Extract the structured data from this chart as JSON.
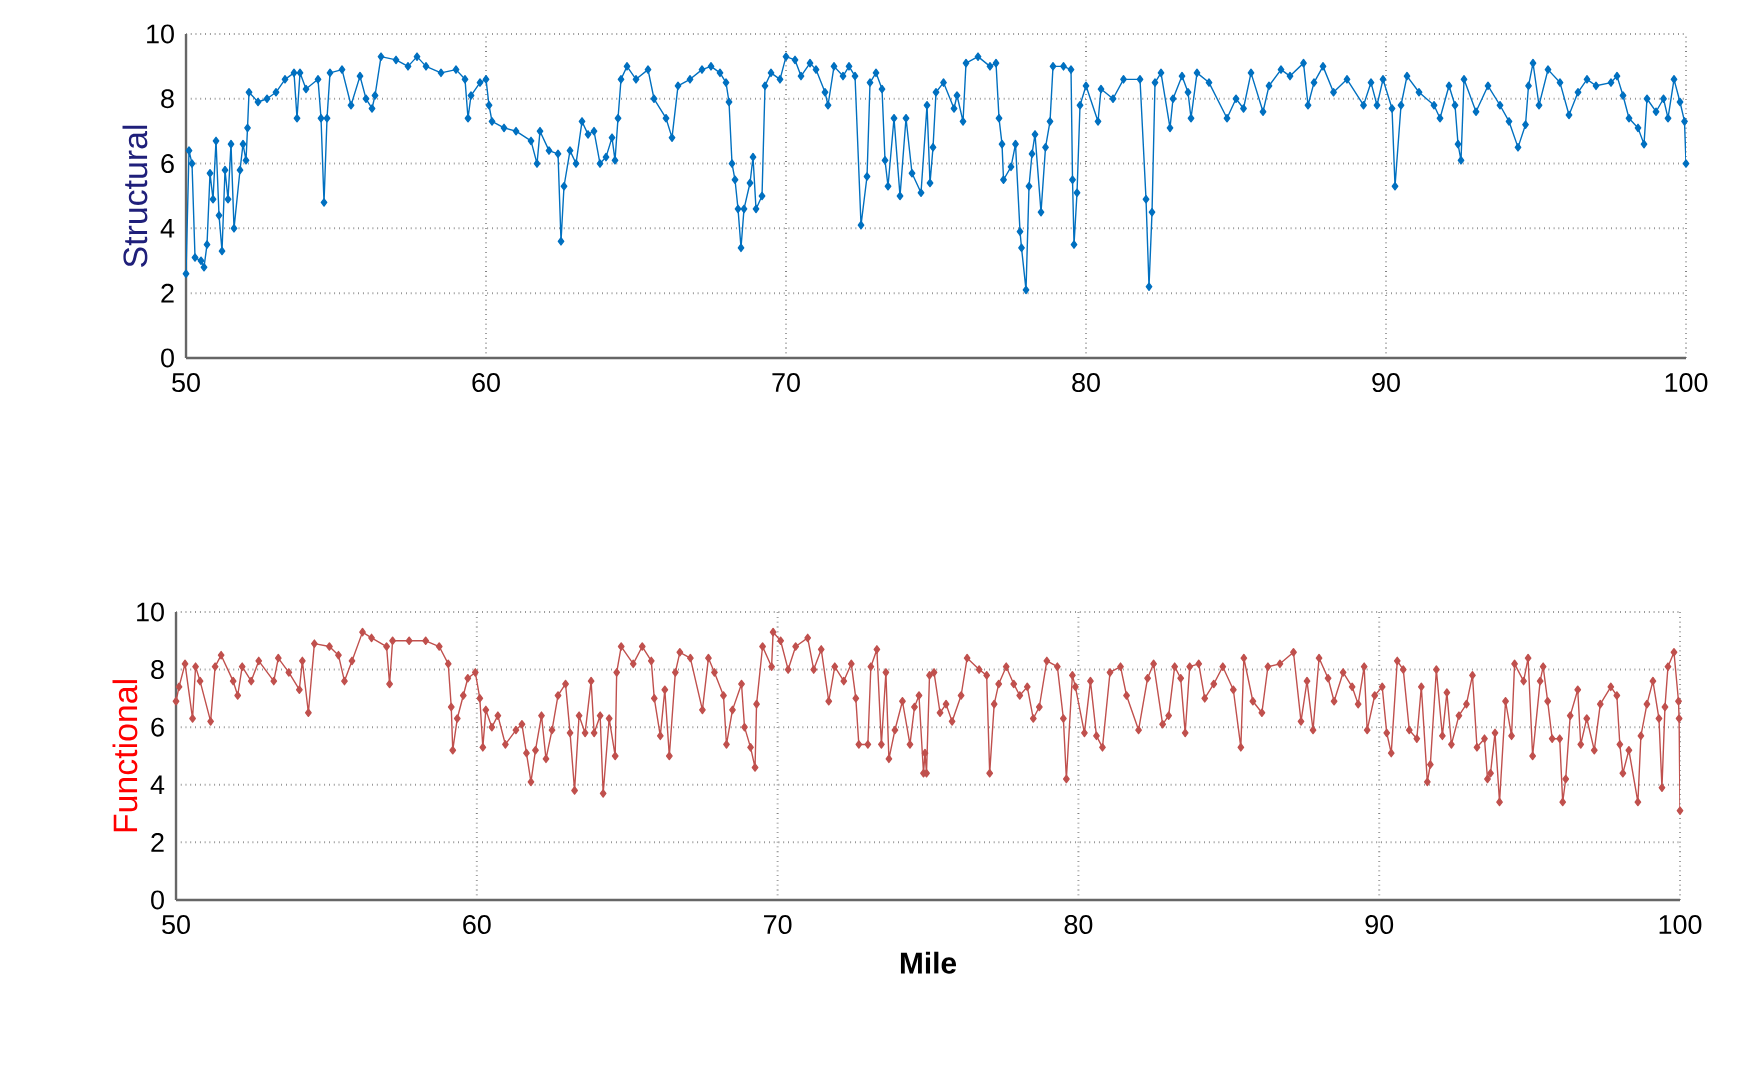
{
  "chart_data": [
    {
      "type": "line",
      "ylabel": "Structural",
      "xlim": [
        50,
        100
      ],
      "ylim": [
        0,
        10
      ],
      "xticks": [
        50,
        60,
        70,
        80,
        90,
        100
      ],
      "yticks": [
        0,
        2,
        4,
        6,
        8,
        10
      ],
      "grid": true,
      "marker": "diamond",
      "series": [
        {
          "color": "#0070c0",
          "x": [
            50.0,
            50.1,
            50.2,
            50.3,
            50.5,
            50.6,
            50.7,
            50.8,
            50.9,
            51.0,
            51.1,
            51.2,
            51.3,
            51.4,
            51.5,
            51.6,
            51.8,
            51.9,
            52.0,
            52.05,
            52.1,
            52.4,
            52.7,
            53.0,
            53.3,
            53.6,
            53.7,
            53.8,
            54.0,
            54.4,
            54.5,
            54.6,
            54.7,
            54.8,
            55.2,
            55.5,
            55.8,
            56.0,
            56.2,
            56.3,
            56.5,
            57.0,
            57.4,
            57.7,
            58.0,
            58.5,
            59.0,
            59.3,
            59.4,
            59.5,
            59.8,
            60.0,
            60.1,
            60.2,
            60.6,
            61.0,
            61.5,
            61.7,
            61.8,
            62.1,
            62.4,
            62.5,
            62.6,
            62.8,
            63.0,
            63.2,
            63.4,
            63.6,
            63.8,
            64.0,
            64.2,
            64.3,
            64.4,
            64.5,
            64.7,
            65.0,
            65.4,
            65.6,
            66.0,
            66.2,
            66.4,
            66.8,
            67.2,
            67.5,
            67.8,
            68.0,
            68.1,
            68.2,
            68.3,
            68.4,
            68.5,
            68.6,
            68.8,
            68.9,
            69.0,
            69.2,
            69.3,
            69.5,
            69.8,
            70.0,
            70.3,
            70.5,
            70.8,
            71.0,
            71.3,
            71.4,
            71.6,
            71.9,
            72.1,
            72.3,
            72.5,
            72.7,
            72.8,
            73.0,
            73.2,
            73.3,
            73.4,
            73.6,
            73.8,
            74.0,
            74.2,
            74.5,
            74.7,
            74.8,
            74.9,
            75.0,
            75.25,
            75.6,
            75.7,
            75.9,
            76.0,
            76.4,
            76.8,
            77.0,
            77.1,
            77.2,
            77.25,
            77.5,
            77.65,
            77.8,
            77.85,
            78.0,
            78.1,
            78.2,
            78.3,
            78.5,
            78.65,
            78.8,
            78.9,
            79.25,
            79.5,
            79.55,
            79.6,
            79.7,
            79.8,
            80.0,
            80.4,
            80.5,
            80.9,
            81.25,
            81.8,
            82.0,
            82.1,
            82.2,
            82.3,
            82.5,
            82.8,
            82.9,
            83.2,
            83.4,
            83.5,
            83.7,
            84.1,
            84.7,
            85.0,
            85.25,
            85.5,
            85.9,
            86.1,
            86.5,
            86.8,
            87.25,
            87.4,
            87.6,
            87.9,
            88.25,
            88.7,
            89.25,
            89.5,
            89.7,
            89.9,
            90.2,
            90.3,
            90.5,
            90.7,
            91.1,
            91.6,
            91.8,
            92.1,
            92.3,
            92.4,
            92.5,
            92.6,
            93.0,
            93.4,
            93.8,
            94.1,
            94.4,
            94.65,
            94.75,
            94.9,
            95.1,
            95.4,
            95.8,
            96.1,
            96.4,
            96.7,
            97.0,
            97.5,
            97.7,
            97.9,
            98.1,
            98.4,
            98.6,
            98.7,
            99.0,
            99.25,
            99.4,
            99.6,
            99.8,
            99.95,
            100.0
          ],
          "values": [
            2.6,
            6.4,
            6.0,
            3.1,
            3.0,
            2.8,
            3.5,
            5.7,
            4.9,
            6.7,
            4.4,
            3.3,
            5.8,
            4.9,
            6.6,
            4.0,
            5.8,
            6.6,
            6.1,
            7.1,
            8.2,
            7.9,
            8.0,
            8.2,
            8.6,
            8.8,
            7.4,
            8.8,
            8.3,
            8.6,
            7.4,
            4.8,
            7.4,
            8.8,
            8.9,
            7.8,
            8.7,
            8.0,
            7.7,
            8.1,
            9.3,
            9.2,
            9.0,
            9.3,
            9.0,
            8.8,
            8.9,
            8.6,
            7.4,
            8.1,
            8.5,
            8.6,
            7.8,
            7.3,
            7.1,
            7.0,
            6.7,
            6.0,
            7.0,
            6.4,
            6.3,
            3.6,
            5.3,
            6.4,
            6.0,
            7.3,
            6.9,
            7.0,
            6.0,
            6.2,
            6.8,
            6.1,
            7.4,
            8.6,
            9.0,
            8.6,
            8.9,
            8.0,
            7.4,
            6.8,
            8.4,
            8.6,
            8.9,
            9.0,
            8.8,
            8.5,
            7.9,
            6.0,
            5.5,
            4.6,
            3.4,
            4.6,
            5.4,
            6.2,
            4.6,
            5.0,
            8.4,
            8.8,
            8.6,
            9.3,
            9.2,
            8.7,
            9.1,
            8.9,
            8.2,
            7.8,
            9.0,
            8.7,
            9.0,
            8.7,
            4.1,
            5.6,
            8.5,
            8.8,
            8.3,
            6.1,
            5.3,
            7.4,
            5.0,
            7.4,
            5.7,
            5.1,
            7.8,
            5.4,
            6.5,
            8.2,
            8.5,
            7.7,
            8.1,
            7.3,
            9.1,
            9.3,
            9.0,
            9.1,
            7.4,
            6.6,
            5.5,
            5.9,
            6.6,
            3.9,
            3.4,
            2.1,
            5.3,
            6.3,
            6.9,
            4.5,
            6.5,
            7.3,
            9.0,
            9.0,
            8.9,
            5.5,
            3.5,
            5.1,
            7.8,
            8.4,
            7.3,
            8.3,
            8.0,
            8.6,
            8.6,
            4.9,
            2.2,
            4.5,
            8.5,
            8.8,
            7.1,
            8.0,
            8.7,
            8.2,
            7.4,
            8.8,
            8.5,
            7.4,
            8.0,
            7.7,
            8.8,
            7.6,
            8.4,
            8.9,
            8.7,
            9.1,
            7.8,
            8.5,
            9.0,
            8.2,
            8.6,
            7.8,
            8.5,
            7.8,
            8.6,
            7.7,
            5.3,
            7.8,
            8.7,
            8.2,
            7.8,
            7.4,
            8.4,
            7.8,
            6.6,
            6.1,
            8.6,
            7.6,
            8.4,
            7.8,
            7.3,
            6.5,
            7.2,
            8.4,
            9.1,
            7.8,
            8.9,
            8.5,
            7.5,
            8.2,
            8.6,
            8.4,
            8.5,
            8.7,
            8.1,
            7.4,
            7.1,
            6.6,
            8.0,
            7.6,
            8.0,
            7.4,
            8.6,
            7.9,
            7.3,
            6.0
          ]
        }
      ]
    },
    {
      "type": "line",
      "ylabel": "Functional",
      "xlabel": "Mile",
      "xlim": [
        50,
        100
      ],
      "ylim": [
        0,
        10
      ],
      "xticks": [
        50,
        60,
        70,
        80,
        90,
        100
      ],
      "yticks": [
        0,
        2,
        4,
        6,
        8,
        10
      ],
      "grid": true,
      "marker": "diamond",
      "series": [
        {
          "color": "#c0504d",
          "x": [
            50.0,
            50.1,
            50.3,
            50.55,
            50.65,
            50.8,
            51.15,
            51.3,
            51.5,
            51.9,
            52.05,
            52.2,
            52.5,
            52.75,
            53.25,
            53.4,
            53.75,
            54.1,
            54.2,
            54.4,
            54.6,
            55.1,
            55.4,
            55.6,
            55.85,
            56.2,
            56.5,
            57.0,
            57.1,
            57.2,
            57.75,
            58.3,
            58.75,
            59.05,
            59.15,
            59.2,
            59.35,
            59.55,
            59.7,
            59.95,
            60.1,
            60.2,
            60.3,
            60.5,
            60.7,
            60.95,
            61.3,
            61.5,
            61.65,
            61.8,
            61.95,
            62.15,
            62.3,
            62.5,
            62.7,
            62.95,
            63.1,
            63.25,
            63.4,
            63.6,
            63.8,
            63.9,
            64.1,
            64.2,
            64.4,
            64.6,
            64.65,
            64.8,
            65.2,
            65.5,
            65.8,
            65.9,
            66.1,
            66.25,
            66.4,
            66.6,
            66.75,
            67.1,
            67.5,
            67.7,
            67.9,
            68.2,
            68.3,
            68.5,
            68.8,
            68.9,
            69.1,
            69.25,
            69.3,
            69.5,
            69.8,
            69.85,
            70.1,
            70.35,
            70.6,
            71.0,
            71.2,
            71.45,
            71.7,
            71.9,
            72.2,
            72.45,
            72.6,
            72.7,
            73.0,
            73.1,
            73.3,
            73.45,
            73.6,
            73.7,
            73.9,
            74.15,
            74.4,
            74.55,
            74.7,
            74.85,
            74.9,
            74.95,
            75.05,
            75.2,
            75.4,
            75.6,
            75.8,
            76.1,
            76.3,
            76.7,
            76.95,
            77.05,
            77.2,
            77.35,
            77.6,
            77.85,
            78.05,
            78.3,
            78.5,
            78.7,
            78.95,
            79.3,
            79.5,
            79.6,
            79.8,
            79.9,
            80.2,
            80.4,
            80.6,
            80.8,
            81.05,
            81.4,
            81.6,
            82.0,
            82.3,
            82.5,
            82.8,
            83.0,
            83.2,
            83.4,
            83.55,
            83.7,
            84.0,
            84.2,
            84.5,
            84.8,
            85.15,
            85.4,
            85.5,
            85.8,
            86.1,
            86.3,
            86.7,
            87.15,
            87.4,
            87.6,
            87.8,
            88.0,
            88.3,
            88.5,
            88.8,
            89.1,
            89.3,
            89.5,
            89.6,
            89.85,
            90.1,
            90.25,
            90.4,
            90.6,
            90.8,
            91.0,
            91.25,
            91.4,
            91.6,
            91.7,
            91.9,
            92.1,
            92.25,
            92.4,
            92.65,
            92.9,
            93.1,
            93.25,
            93.5,
            93.6,
            93.7,
            93.85,
            94.0,
            94.2,
            94.4,
            94.5,
            94.8,
            94.95,
            95.1,
            95.35,
            95.45,
            95.6,
            95.75,
            96.0,
            96.1,
            96.2,
            96.35,
            96.6,
            96.7,
            96.9,
            97.15,
            97.35,
            97.7,
            97.9,
            98.0,
            98.1,
            98.3,
            98.6,
            98.7,
            98.9,
            99.1,
            99.3,
            99.4,
            99.5,
            99.6,
            99.8,
            99.95,
            99.97,
            100.0
          ],
          "values": [
            6.9,
            7.4,
            8.2,
            6.3,
            8.1,
            7.6,
            6.2,
            8.1,
            8.5,
            7.6,
            7.1,
            8.1,
            7.6,
            8.3,
            7.6,
            8.4,
            7.9,
            7.3,
            8.3,
            6.5,
            8.9,
            8.8,
            8.5,
            7.6,
            8.3,
            9.3,
            9.1,
            8.8,
            7.5,
            9.0,
            9.0,
            9.0,
            8.8,
            8.2,
            6.7,
            5.2,
            6.3,
            7.1,
            7.7,
            7.9,
            7.0,
            5.3,
            6.6,
            6.0,
            6.4,
            5.4,
            5.9,
            6.1,
            5.1,
            4.1,
            5.2,
            6.4,
            4.9,
            5.9,
            7.1,
            7.5,
            5.8,
            3.8,
            6.4,
            5.8,
            7.6,
            5.8,
            6.4,
            3.7,
            6.3,
            5.0,
            7.9,
            8.8,
            8.2,
            8.8,
            8.3,
            7.0,
            5.7,
            7.3,
            5.0,
            7.9,
            8.6,
            8.4,
            6.6,
            8.4,
            7.9,
            7.1,
            5.4,
            6.6,
            7.5,
            6.0,
            5.3,
            4.6,
            6.8,
            8.8,
            8.1,
            9.3,
            9.0,
            8.0,
            8.8,
            9.1,
            8.0,
            8.7,
            6.9,
            8.1,
            7.6,
            8.2,
            7.0,
            5.4,
            5.4,
            8.1,
            8.7,
            5.4,
            7.9,
            4.9,
            5.9,
            6.9,
            5.4,
            6.7,
            7.1,
            4.4,
            5.1,
            4.4,
            7.8,
            7.9,
            6.5,
            6.8,
            6.2,
            7.1,
            8.4,
            8.0,
            7.8,
            4.4,
            6.8,
            7.5,
            8.1,
            7.5,
            7.1,
            7.4,
            6.3,
            6.7,
            8.3,
            8.1,
            6.3,
            4.2,
            7.8,
            7.4,
            5.8,
            7.6,
            5.7,
            5.3,
            7.9,
            8.1,
            7.1,
            5.9,
            7.7,
            8.2,
            6.1,
            6.4,
            8.1,
            7.7,
            5.8,
            8.1,
            8.2,
            7.0,
            7.5,
            8.1,
            7.3,
            5.3,
            8.4,
            6.9,
            6.5,
            8.1,
            8.2,
            8.6,
            6.2,
            7.6,
            5.9,
            8.4,
            7.7,
            6.9,
            7.9,
            7.4,
            6.8,
            8.1,
            5.9,
            7.1,
            7.4,
            5.8,
            5.1,
            8.3,
            8.0,
            5.9,
            5.6,
            7.4,
            4.1,
            4.7,
            8.0,
            5.7,
            7.2,
            5.4,
            6.4,
            6.8,
            7.8,
            5.3,
            5.6,
            4.2,
            4.4,
            5.8,
            3.4,
            6.9,
            5.7,
            8.2,
            7.6,
            8.4,
            5.0,
            7.6,
            8.1,
            6.9,
            5.6,
            5.6,
            3.4,
            4.2,
            6.4,
            7.3,
            5.4,
            6.3,
            5.2,
            6.8,
            7.4,
            7.1,
            5.4,
            4.4,
            5.2,
            3.4,
            5.7,
            6.8,
            7.6,
            6.3,
            3.9,
            6.7,
            8.1,
            8.6,
            6.9,
            6.3,
            3.1
          ]
        }
      ]
    }
  ]
}
